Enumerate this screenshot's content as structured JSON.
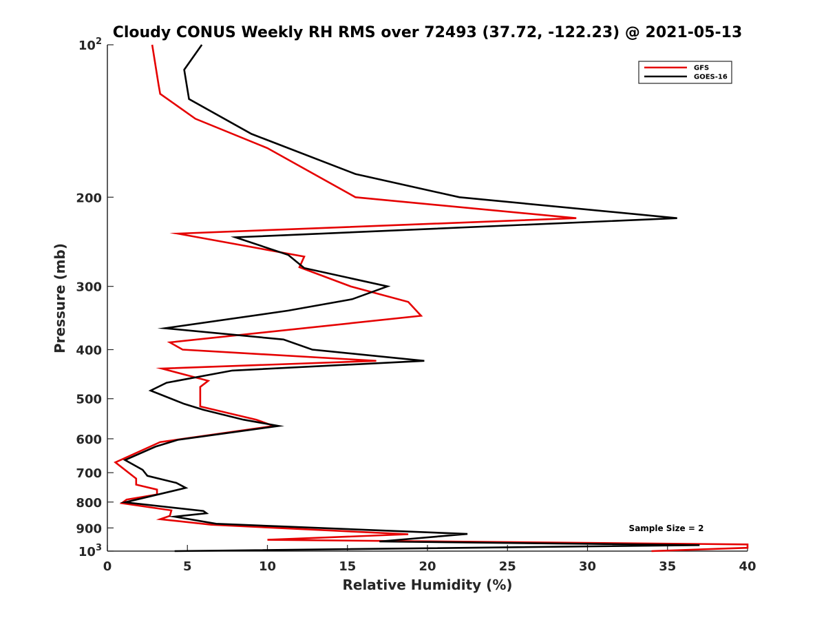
{
  "chart_data": {
    "type": "line",
    "title": "Cloudy CONUS Weekly RH RMS over 72493 (37.72, -122.23) @ 2021-05-13",
    "xlabel": "Relative Humidity (%)",
    "ylabel": "Pressure (mb)",
    "xlim": [
      0,
      40
    ],
    "ylim": [
      100,
      1000
    ],
    "yscale": "log",
    "y_reversed": true,
    "x_ticks": [
      0,
      5,
      10,
      15,
      20,
      25,
      30,
      35,
      40
    ],
    "x_tick_labels": [
      "0",
      "5",
      "10",
      "15",
      "20",
      "25",
      "30",
      "35",
      "40"
    ],
    "y_ticks": [
      100,
      200,
      300,
      400,
      500,
      600,
      700,
      800,
      900,
      1000
    ],
    "y_tick_labels": [
      {
        "base": "10",
        "exp": "2"
      },
      {
        "base": "200",
        "exp": ""
      },
      {
        "base": "300",
        "exp": ""
      },
      {
        "base": "400",
        "exp": ""
      },
      {
        "base": "500",
        "exp": ""
      },
      {
        "base": "600",
        "exp": ""
      },
      {
        "base": "700",
        "exp": ""
      },
      {
        "base": "800",
        "exp": ""
      },
      {
        "base": "900",
        "exp": ""
      },
      {
        "base": "10",
        "exp": "3"
      }
    ],
    "grid": false,
    "legend_position": "top-right",
    "annotation": "Sample Size = 2",
    "series": [
      {
        "name": "GFS",
        "color": "#e50000",
        "points": [
          [
            2.8,
            100
          ],
          [
            3.2,
            120
          ],
          [
            3.3,
            125
          ],
          [
            5.5,
            140
          ],
          [
            10.0,
            160
          ],
          [
            15.5,
            200
          ],
          [
            29.3,
            220
          ],
          [
            4.4,
            236
          ],
          [
            12.3,
            262
          ],
          [
            12.0,
            275
          ],
          [
            15.2,
            300
          ],
          [
            18.8,
            322
          ],
          [
            19.6,
            343
          ],
          [
            3.9,
            387
          ],
          [
            4.7,
            400
          ],
          [
            16.8,
            421
          ],
          [
            3.4,
            436
          ],
          [
            6.3,
            461
          ],
          [
            5.8,
            474
          ],
          [
            5.8,
            518
          ],
          [
            9.3,
            550
          ],
          [
            10.4,
            566
          ],
          [
            3.3,
            609
          ],
          [
            0.5,
            668
          ],
          [
            1.8,
            719
          ],
          [
            1.8,
            739
          ],
          [
            3.1,
            756
          ],
          [
            3.1,
            773
          ],
          [
            1.2,
            791
          ],
          [
            0.9,
            804
          ],
          [
            4.0,
            831
          ],
          [
            3.9,
            852
          ],
          [
            3.3,
            865
          ],
          [
            6.5,
            887
          ],
          [
            18.8,
            926
          ],
          [
            10.0,
            950
          ],
          [
            40.0,
            970
          ],
          [
            40.0,
            985
          ],
          [
            34.0,
            1000
          ]
        ]
      },
      {
        "name": "GOES-16",
        "color": "#000000",
        "points": [
          [
            5.9,
            100
          ],
          [
            4.8,
            112
          ],
          [
            5.1,
            128
          ],
          [
            9.0,
            150
          ],
          [
            15.5,
            180
          ],
          [
            22.0,
            200
          ],
          [
            35.6,
            220
          ],
          [
            8.0,
            240
          ],
          [
            11.3,
            260
          ],
          [
            12.3,
            276
          ],
          [
            17.5,
            300
          ],
          [
            15.3,
            318
          ],
          [
            11.3,
            335
          ],
          [
            3.6,
            363
          ],
          [
            11.0,
            382
          ],
          [
            12.8,
            400
          ],
          [
            19.8,
            421
          ],
          [
            7.8,
            440
          ],
          [
            3.7,
            465
          ],
          [
            2.7,
            482
          ],
          [
            4.8,
            512
          ],
          [
            6.0,
            526
          ],
          [
            8.5,
            550
          ],
          [
            10.7,
            566
          ],
          [
            4.4,
            603
          ],
          [
            3.0,
            622
          ],
          [
            1.1,
            661
          ],
          [
            2.2,
            691
          ],
          [
            2.5,
            710
          ],
          [
            4.3,
            733
          ],
          [
            4.9,
            750
          ],
          [
            1.1,
            801
          ],
          [
            6.0,
            833
          ],
          [
            6.2,
            842
          ],
          [
            4.2,
            855
          ],
          [
            6.8,
            883
          ],
          [
            22.5,
            925
          ],
          [
            17.0,
            957
          ],
          [
            37.0,
            973
          ],
          [
            4.2,
            1000
          ]
        ]
      }
    ]
  }
}
